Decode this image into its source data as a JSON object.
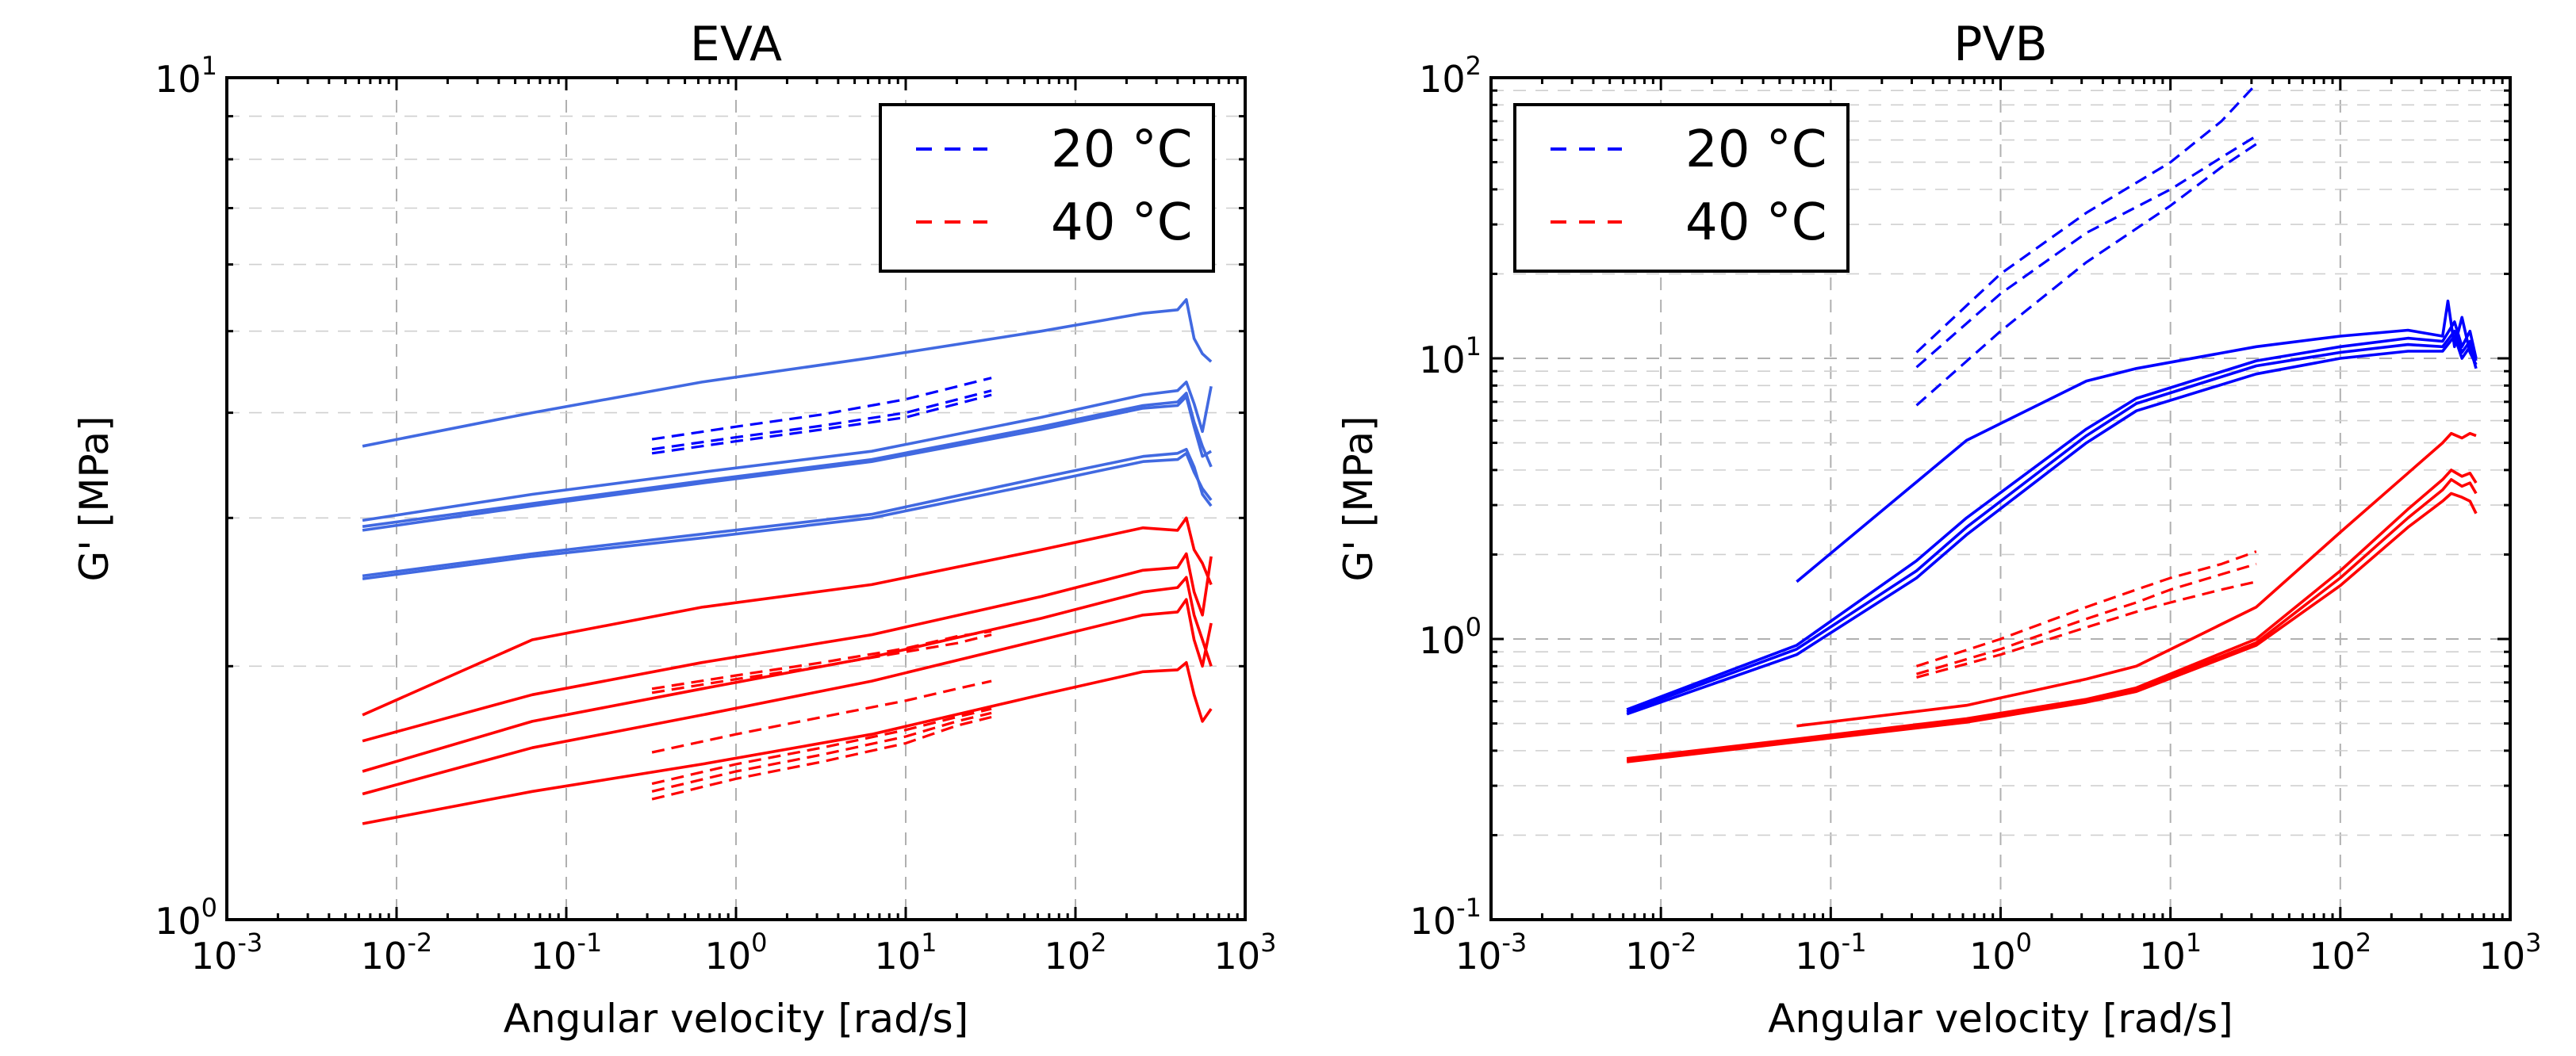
{
  "chart_data": [
    {
      "type": "line",
      "title": "EVA",
      "xlabel": "Angular velocity [rad/s]",
      "ylabel": "G' [MPa]",
      "xscale": "log",
      "yscale": "log",
      "xlim": [
        0.001,
        1000
      ],
      "ylim": [
        1,
        10
      ],
      "grid": true,
      "legend_position": "top-right",
      "xticks": [
        {
          "base": "10",
          "exp": "-3"
        },
        {
          "base": "10",
          "exp": "-2"
        },
        {
          "base": "10",
          "exp": "-1"
        },
        {
          "base": "10",
          "exp": "0"
        },
        {
          "base": "10",
          "exp": "1"
        },
        {
          "base": "10",
          "exp": "2"
        },
        {
          "base": "10",
          "exp": "3"
        }
      ],
      "yticks": [
        {
          "base": "10",
          "exp": "0"
        },
        {
          "base": "10",
          "exp": "1"
        }
      ],
      "legend": [
        {
          "label": "20 °C",
          "color": "#0000ff",
          "style": "dashed"
        },
        {
          "label": "40 °C",
          "color": "#ff0000",
          "style": "dashed"
        }
      ],
      "series": [
        {
          "name": "20 °C solid 1",
          "color": "#4169e1",
          "style": "solid",
          "x": [
            0.0063,
            0.063,
            0.63,
            6.3,
            63,
            250,
            400,
            450,
            500,
            560,
            630
          ],
          "y": [
            3.65,
            4.0,
            4.35,
            4.65,
            5.0,
            5.25,
            5.3,
            5.45,
            4.9,
            4.7,
            4.6
          ]
        },
        {
          "name": "20 °C solid 2",
          "color": "#4169e1",
          "style": "solid",
          "x": [
            0.0063,
            0.063,
            0.63,
            6.3,
            63,
            250,
            400,
            450,
            500,
            560,
            630
          ],
          "y": [
            2.98,
            3.2,
            3.4,
            3.6,
            3.95,
            4.2,
            4.25,
            4.35,
            4.1,
            3.8,
            4.3
          ]
        },
        {
          "name": "20 °C solid 3",
          "color": "#4169e1",
          "style": "solid",
          "x": [
            0.0063,
            0.063,
            0.63,
            6.3,
            63,
            250,
            400,
            450,
            500,
            560,
            630
          ],
          "y": [
            2.93,
            3.12,
            3.32,
            3.52,
            3.85,
            4.08,
            4.12,
            4.22,
            3.9,
            3.65,
            3.45
          ]
        },
        {
          "name": "20 °C solid 4",
          "color": "#4169e1",
          "style": "solid",
          "x": [
            0.0063,
            0.063,
            0.63,
            6.3,
            63,
            250,
            400,
            450,
            500,
            560,
            630
          ],
          "y": [
            2.9,
            3.1,
            3.3,
            3.5,
            3.82,
            4.05,
            4.08,
            4.18,
            3.85,
            3.55,
            3.6
          ]
        },
        {
          "name": "20 °C solid 5",
          "color": "#4169e1",
          "style": "solid",
          "x": [
            0.0063,
            0.063,
            0.63,
            6.3,
            63,
            250,
            400,
            450,
            500,
            560,
            630
          ],
          "y": [
            2.56,
            2.72,
            2.87,
            3.03,
            3.35,
            3.55,
            3.58,
            3.62,
            3.45,
            3.2,
            3.1
          ]
        },
        {
          "name": "20 °C solid 6",
          "color": "#4169e1",
          "style": "solid",
          "x": [
            0.0063,
            0.063,
            0.63,
            6.3,
            63,
            250,
            400,
            450,
            500,
            560,
            630
          ],
          "y": [
            2.54,
            2.7,
            2.84,
            3.0,
            3.3,
            3.5,
            3.52,
            3.58,
            3.4,
            3.25,
            3.15
          ]
        },
        {
          "name": "20 °C dashed 1",
          "color": "#0000ff",
          "style": "dashed",
          "x": [
            0.32,
            1,
            3.2,
            10,
            32
          ],
          "y": [
            3.72,
            3.85,
            3.98,
            4.15,
            4.4
          ]
        },
        {
          "name": "20 °C dashed 2",
          "color": "#0000ff",
          "style": "dashed",
          "x": [
            0.32,
            1,
            3.2,
            10,
            32
          ],
          "y": [
            3.62,
            3.74,
            3.86,
            4.0,
            4.25
          ]
        },
        {
          "name": "20 °C dashed 3",
          "color": "#0000ff",
          "style": "dashed",
          "x": [
            0.32,
            1,
            3.2,
            10,
            32
          ],
          "y": [
            3.58,
            3.7,
            3.82,
            3.95,
            4.2
          ]
        },
        {
          "name": "40 °C solid 1",
          "color": "#ff0000",
          "style": "solid",
          "x": [
            0.0063,
            0.063,
            0.63,
            6.3,
            63,
            250,
            400,
            450,
            500,
            560,
            630
          ],
          "y": [
            1.75,
            2.15,
            2.35,
            2.5,
            2.75,
            2.92,
            2.9,
            3.0,
            2.75,
            2.65,
            2.5
          ]
        },
        {
          "name": "40 °C solid 2",
          "color": "#ff0000",
          "style": "solid",
          "x": [
            0.0063,
            0.063,
            0.63,
            6.3,
            63,
            250,
            400,
            450,
            500,
            560,
            630
          ],
          "y": [
            1.63,
            1.85,
            2.02,
            2.18,
            2.42,
            2.6,
            2.62,
            2.72,
            2.45,
            2.3,
            2.7
          ]
        },
        {
          "name": "40 °C solid 3",
          "color": "#ff0000",
          "style": "solid",
          "x": [
            0.0063,
            0.063,
            0.63,
            6.3,
            63,
            250,
            400,
            450,
            500,
            560,
            630
          ],
          "y": [
            1.5,
            1.72,
            1.88,
            2.05,
            2.28,
            2.45,
            2.48,
            2.55,
            2.3,
            2.15,
            2.0
          ]
        },
        {
          "name": "40 °C solid 4",
          "color": "#ff0000",
          "style": "solid",
          "x": [
            0.0063,
            0.063,
            0.63,
            6.3,
            63,
            250,
            400,
            450,
            500,
            560,
            630
          ],
          "y": [
            1.41,
            1.6,
            1.75,
            1.92,
            2.15,
            2.3,
            2.32,
            2.4,
            2.15,
            2.0,
            2.25
          ]
        },
        {
          "name": "40 °C solid 5",
          "color": "#ff0000",
          "style": "solid",
          "x": [
            0.0063,
            0.063,
            0.63,
            6.3,
            63,
            250,
            400,
            450,
            500,
            560,
            630
          ],
          "y": [
            1.3,
            1.42,
            1.53,
            1.66,
            1.85,
            1.97,
            1.98,
            2.02,
            1.85,
            1.72,
            1.78
          ]
        },
        {
          "name": "40 °C dashed 1",
          "color": "#ff0000",
          "style": "dashed",
          "x": [
            0.32,
            1,
            3.2,
            10,
            20,
            32
          ],
          "y": [
            1.88,
            1.95,
            2.02,
            2.1,
            2.17,
            2.2
          ]
        },
        {
          "name": "40 °C dashed 2",
          "color": "#ff0000",
          "style": "dashed",
          "x": [
            0.32,
            1,
            3.2,
            10,
            20,
            32
          ],
          "y": [
            1.86,
            1.93,
            2.0,
            2.08,
            2.13,
            2.18
          ]
        },
        {
          "name": "40 °C dashed 3",
          "color": "#ff0000",
          "style": "dashed",
          "x": [
            0.32,
            1,
            3.2,
            10,
            20,
            32
          ],
          "y": [
            1.58,
            1.66,
            1.74,
            1.82,
            1.88,
            1.92
          ]
        },
        {
          "name": "40 °C dashed 4",
          "color": "#ff0000",
          "style": "dashed",
          "x": [
            0.32,
            1,
            3.2,
            10,
            20,
            32
          ],
          "y": [
            1.45,
            1.53,
            1.6,
            1.68,
            1.74,
            1.78
          ]
        },
        {
          "name": "40 °C dashed 5",
          "color": "#ff0000",
          "style": "dashed",
          "x": [
            0.32,
            1,
            3.2,
            10,
            20,
            32
          ],
          "y": [
            1.42,
            1.5,
            1.57,
            1.65,
            1.72,
            1.76
          ]
        },
        {
          "name": "40 °C dashed 6",
          "color": "#ff0000",
          "style": "dashed",
          "x": [
            0.32,
            1,
            3.2,
            10,
            20,
            32
          ],
          "y": [
            1.39,
            1.47,
            1.54,
            1.62,
            1.7,
            1.74
          ]
        }
      ]
    },
    {
      "type": "line",
      "title": "PVB",
      "xlabel": "Angular velocity [rad/s]",
      "ylabel": "G' [MPa]",
      "xscale": "log",
      "yscale": "log",
      "xlim": [
        0.001,
        1000
      ],
      "ylim": [
        0.1,
        100
      ],
      "grid": true,
      "legend_position": "top-left",
      "xticks": [
        {
          "base": "10",
          "exp": "-3"
        },
        {
          "base": "10",
          "exp": "-2"
        },
        {
          "base": "10",
          "exp": "-1"
        },
        {
          "base": "10",
          "exp": "0"
        },
        {
          "base": "10",
          "exp": "1"
        },
        {
          "base": "10",
          "exp": "2"
        },
        {
          "base": "10",
          "exp": "3"
        }
      ],
      "yticks": [
        {
          "base": "10",
          "exp": "-1"
        },
        {
          "base": "10",
          "exp": "0"
        },
        {
          "base": "10",
          "exp": "1"
        },
        {
          "base": "10",
          "exp": "2"
        }
      ],
      "legend": [
        {
          "label": "20 °C",
          "color": "#0000ff",
          "style": "dashed"
        },
        {
          "label": "40 °C",
          "color": "#ff0000",
          "style": "dashed"
        }
      ],
      "series": [
        {
          "name": "20 °C solid 1",
          "color": "#0000ff",
          "style": "solid",
          "x": [
            0.063,
            0.63,
            3.2,
            6.3,
            32,
            100,
            250,
            400,
            430,
            470,
            520,
            580,
            630
          ],
          "y": [
            1.6,
            5.1,
            8.3,
            9.2,
            11.0,
            12.0,
            12.6,
            12.0,
            16.0,
            11.0,
            14.0,
            10.5,
            9.5
          ]
        },
        {
          "name": "20 °C solid 2",
          "color": "#0000ff",
          "style": "solid",
          "x": [
            0.0063,
            0.063,
            0.32,
            0.63,
            3.2,
            6.3,
            32,
            100,
            250,
            400,
            470,
            520,
            580,
            630
          ],
          "y": [
            0.56,
            0.95,
            1.9,
            2.7,
            5.6,
            7.2,
            9.8,
            11.0,
            11.8,
            11.5,
            13.5,
            11.0,
            12.5,
            10.0
          ]
        },
        {
          "name": "20 °C solid 3",
          "color": "#0000ff",
          "style": "solid",
          "x": [
            0.0063,
            0.063,
            0.32,
            0.63,
            3.2,
            6.3,
            32,
            100,
            250,
            400,
            470,
            520,
            580,
            630
          ],
          "y": [
            0.55,
            0.92,
            1.75,
            2.5,
            5.3,
            6.9,
            9.4,
            10.5,
            11.2,
            11.0,
            12.5,
            10.5,
            11.5,
            9.8
          ]
        },
        {
          "name": "20 °C solid 4",
          "color": "#0000ff",
          "style": "solid",
          "x": [
            0.0063,
            0.063,
            0.32,
            0.63,
            3.2,
            6.3,
            32,
            100,
            250,
            400,
            470,
            520,
            580,
            630
          ],
          "y": [
            0.54,
            0.88,
            1.65,
            2.35,
            5.0,
            6.5,
            8.8,
            10.0,
            10.6,
            10.6,
            12.0,
            10.0,
            11.0,
            9.2
          ]
        },
        {
          "name": "20 °C dashed 1",
          "color": "#0000ff",
          "style": "dashed",
          "x": [
            0.32,
            1,
            3.2,
            10,
            20,
            32
          ],
          "y": [
            10.5,
            20.0,
            33.0,
            50.0,
            70.0,
            95.0
          ]
        },
        {
          "name": "20 °C dashed 2",
          "color": "#0000ff",
          "style": "dashed",
          "x": [
            0.32,
            1,
            3.2,
            10,
            20,
            32
          ],
          "y": [
            9.3,
            17.0,
            28.0,
            40.0,
            52.0,
            62.0
          ]
        },
        {
          "name": "20 °C dashed 3",
          "color": "#0000ff",
          "style": "dashed",
          "x": [
            0.32,
            1,
            3.2,
            10,
            20,
            32
          ],
          "y": [
            6.8,
            12.5,
            22.0,
            35.0,
            48.0,
            58.0
          ]
        },
        {
          "name": "40 °C solid 1",
          "color": "#ff0000",
          "style": "solid",
          "x": [
            0.063,
            0.63,
            3.2,
            6.3,
            32,
            100,
            250,
            400,
            450,
            520,
            580,
            630
          ],
          "y": [
            0.49,
            0.58,
            0.72,
            0.8,
            1.3,
            2.4,
            3.9,
            5.0,
            5.4,
            5.2,
            5.4,
            5.3
          ]
        },
        {
          "name": "40 °C solid 2",
          "color": "#ff0000",
          "style": "solid",
          "x": [
            0.0063,
            0.063,
            0.63,
            3.2,
            6.3,
            32,
            100,
            250,
            400,
            450,
            520,
            580,
            630
          ],
          "y": [
            0.375,
            0.44,
            0.52,
            0.61,
            0.67,
            1.0,
            1.75,
            2.9,
            3.7,
            4.0,
            3.8,
            3.9,
            3.6
          ]
        },
        {
          "name": "40 °C solid 3",
          "color": "#ff0000",
          "style": "solid",
          "x": [
            0.0063,
            0.063,
            0.63,
            3.2,
            6.3,
            32,
            100,
            250,
            400,
            450,
            520,
            580,
            630
          ],
          "y": [
            0.37,
            0.435,
            0.51,
            0.6,
            0.66,
            0.97,
            1.65,
            2.7,
            3.4,
            3.7,
            3.5,
            3.6,
            3.3
          ]
        },
        {
          "name": "40 °C solid 4",
          "color": "#ff0000",
          "style": "solid",
          "x": [
            0.0063,
            0.063,
            0.63,
            3.2,
            6.3,
            32,
            100,
            250,
            400,
            450,
            520,
            580,
            630
          ],
          "y": [
            0.365,
            0.43,
            0.505,
            0.595,
            0.65,
            0.95,
            1.55,
            2.5,
            3.1,
            3.3,
            3.2,
            3.1,
            2.8
          ]
        },
        {
          "name": "40 °C dashed 1",
          "color": "#ff0000",
          "style": "dashed",
          "x": [
            0.32,
            1,
            3.2,
            6.3,
            10,
            20,
            32
          ],
          "y": [
            0.8,
            1.0,
            1.3,
            1.5,
            1.65,
            1.85,
            2.05
          ]
        },
        {
          "name": "40 °C dashed 2",
          "color": "#ff0000",
          "style": "dashed",
          "x": [
            0.32,
            1,
            3.2,
            6.3,
            10,
            20,
            32
          ],
          "y": [
            0.75,
            0.92,
            1.18,
            1.35,
            1.5,
            1.7,
            1.85
          ]
        },
        {
          "name": "40 °C dashed 3",
          "color": "#ff0000",
          "style": "dashed",
          "x": [
            0.32,
            1,
            3.2,
            6.3,
            10,
            20,
            32
          ],
          "y": [
            0.73,
            0.88,
            1.1,
            1.25,
            1.35,
            1.5,
            1.6
          ]
        }
      ]
    }
  ]
}
